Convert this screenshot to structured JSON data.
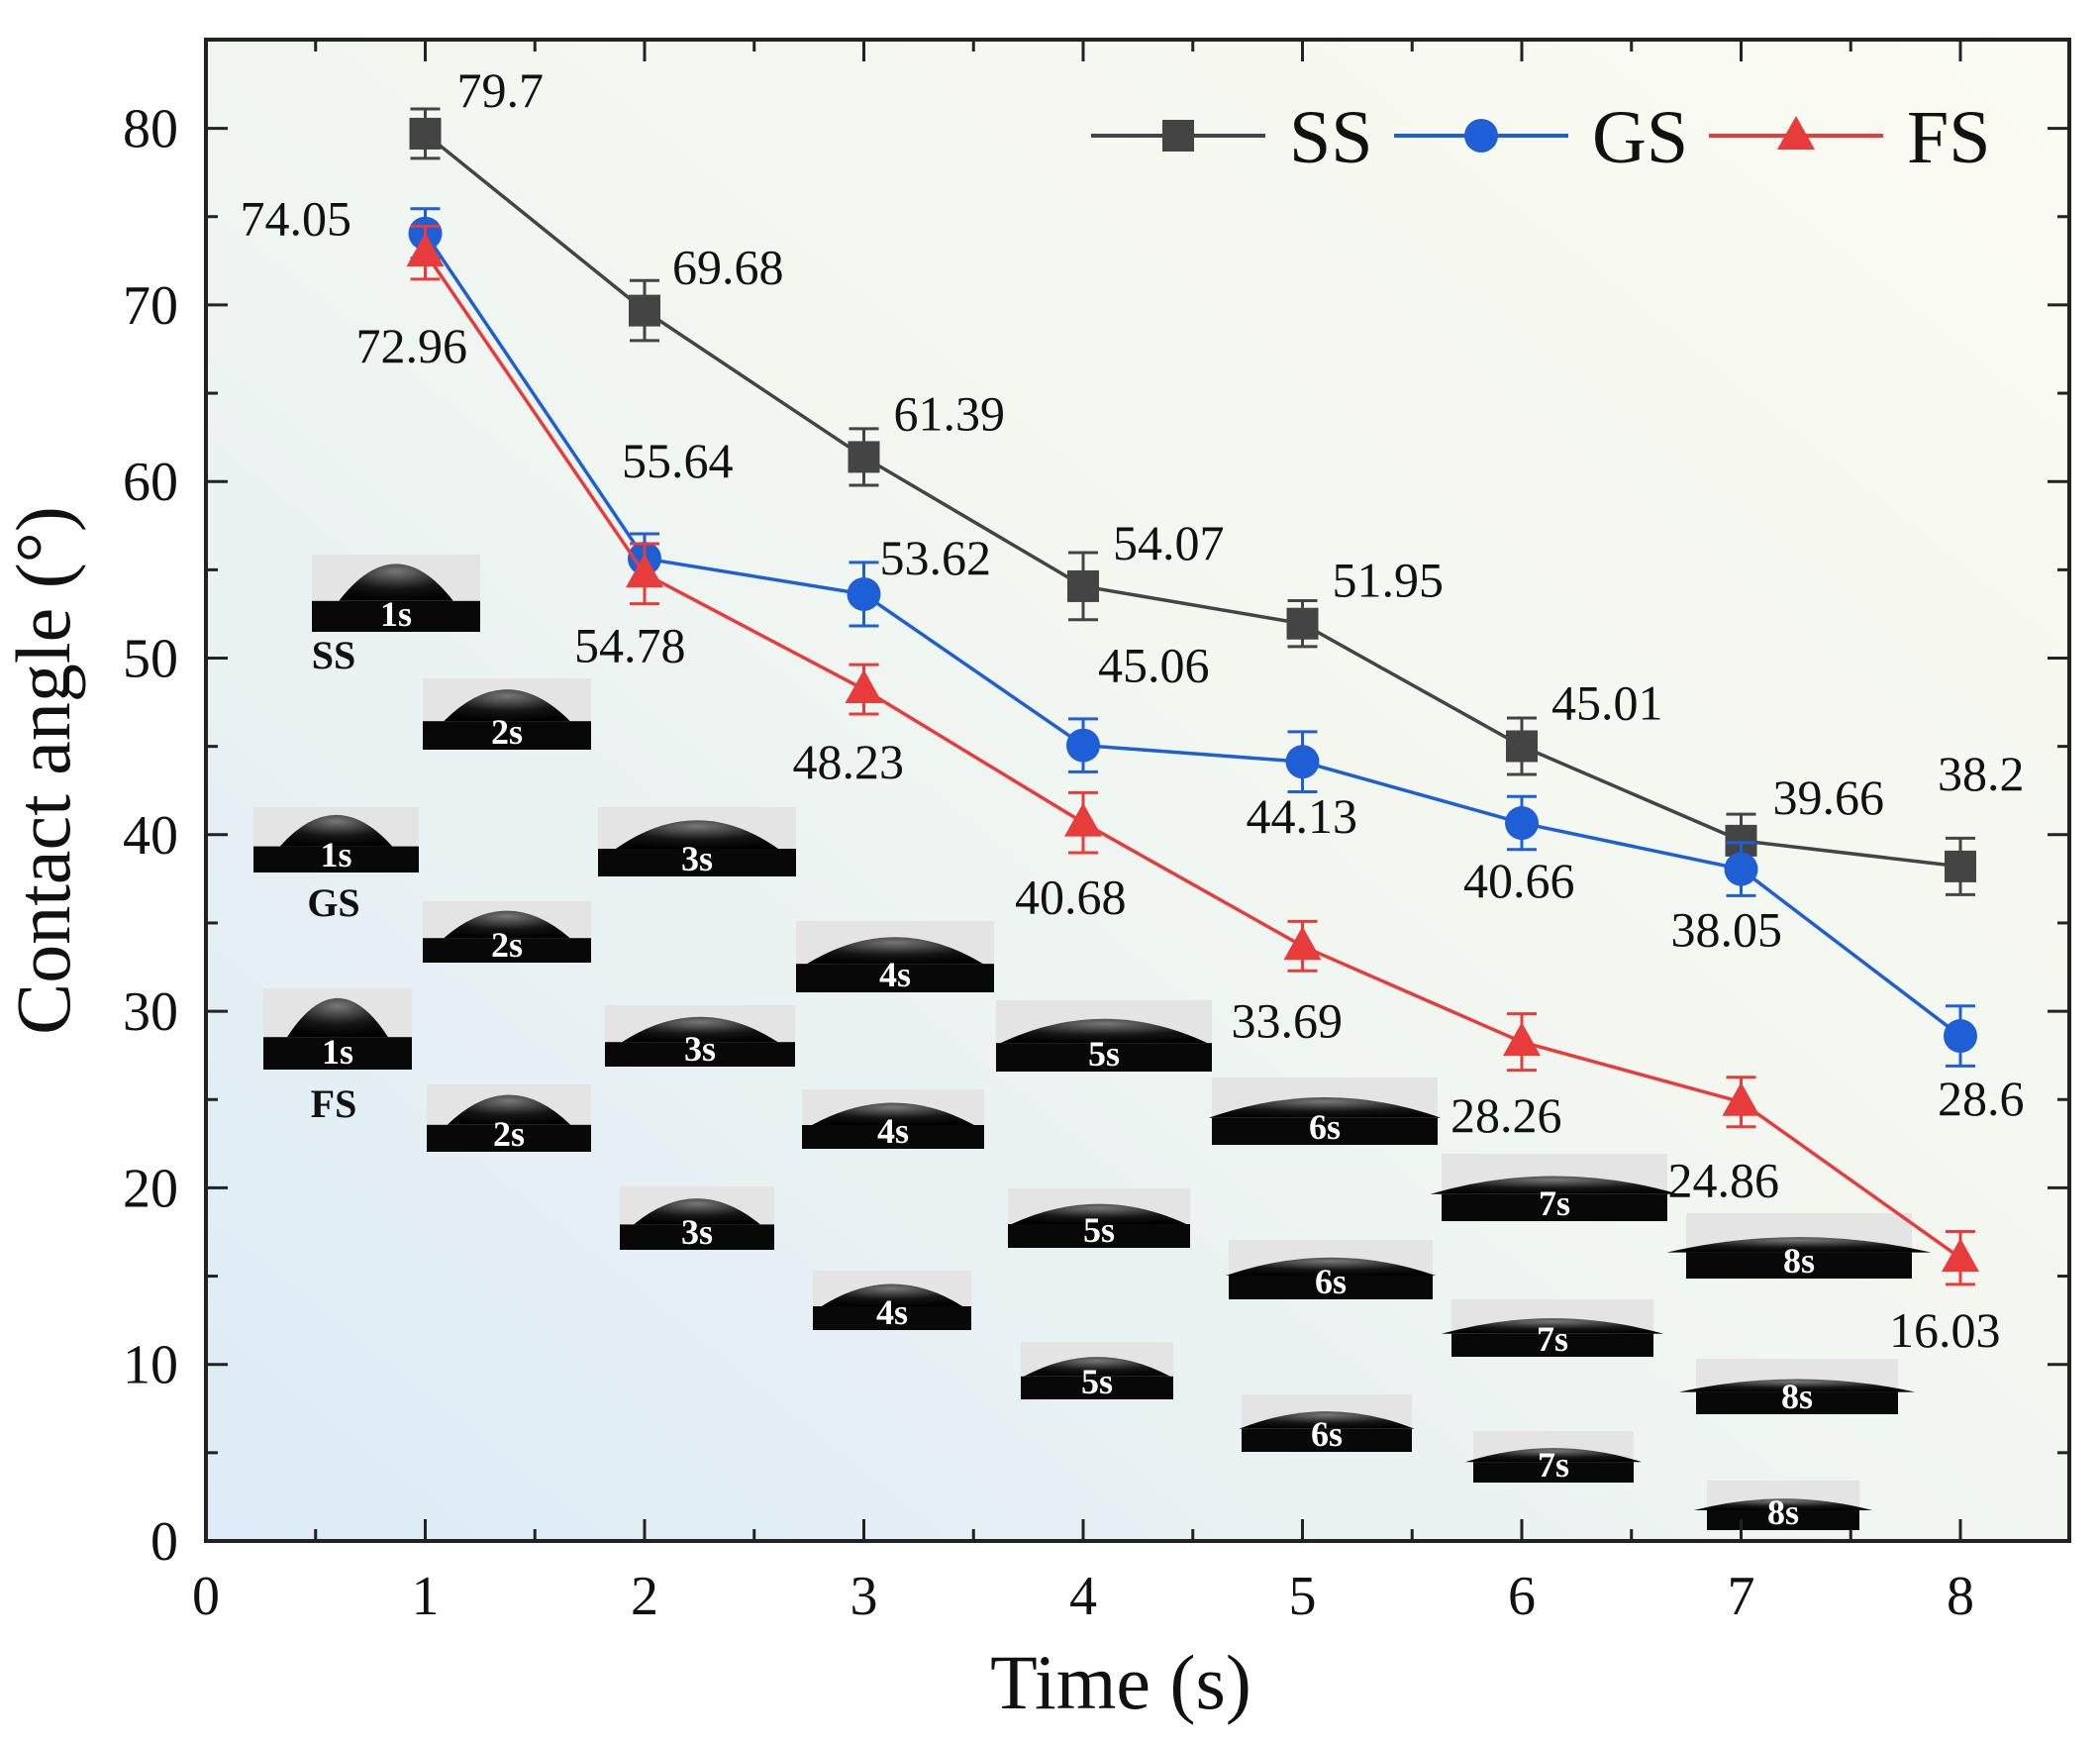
{
  "chart_data": {
    "type": "line",
    "title": "",
    "xlabel": "Time (s)",
    "ylabel": "Contact angle (°)",
    "xlim": [
      0,
      8.5
    ],
    "ylim": [
      0,
      85
    ],
    "xticks": [
      0,
      1,
      2,
      3,
      4,
      5,
      6,
      7,
      8
    ],
    "yticks": [
      0,
      10,
      20,
      30,
      40,
      50,
      60,
      70,
      80
    ],
    "legend_position": "top-right",
    "x": [
      1,
      2,
      3,
      4,
      5,
      6,
      7,
      8
    ],
    "series": [
      {
        "name": "SS",
        "color": "#444444",
        "marker": "square",
        "values": [
          79.7,
          69.68,
          61.39,
          54.07,
          51.95,
          45.01,
          39.66,
          38.2
        ],
        "errors": [
          1.4,
          1.7,
          1.6,
          1.9,
          1.3,
          1.6,
          1.5,
          1.6
        ],
        "labels": [
          "79.7",
          "69.68",
          "61.39",
          "54.07",
          "51.95",
          "45.01",
          "39.66",
          "38.2"
        ]
      },
      {
        "name": "GS",
        "color": "#1f5fd6",
        "marker": "circle",
        "values": [
          74.05,
          55.64,
          53.62,
          45.06,
          44.13,
          40.66,
          38.05,
          28.6
        ],
        "errors": [
          1.4,
          1.4,
          1.8,
          1.5,
          1.7,
          1.5,
          1.5,
          1.7
        ],
        "labels": [
          "74.05",
          "55.64",
          "53.62",
          "45.06",
          "44.13",
          "40.66",
          "38.05",
          "28.6"
        ]
      },
      {
        "name": "FS",
        "color": "#e83b3b",
        "marker": "triangle",
        "values": [
          72.96,
          54.78,
          48.23,
          40.68,
          33.69,
          28.26,
          24.86,
          16.03
        ],
        "errors": [
          1.5,
          1.7,
          1.4,
          1.7,
          1.4,
          1.6,
          1.4,
          1.5
        ],
        "labels": [
          "72.96",
          "54.78",
          "48.23",
          "40.68",
          "33.69",
          "28.26",
          "24.86",
          "16.03"
        ]
      }
    ],
    "inset_images": {
      "group_labels": [
        "SS",
        "GS",
        "FS"
      ],
      "SS": [
        "1s",
        "2s",
        "3s",
        "4s",
        "5s",
        "6s",
        "7s",
        "8s"
      ],
      "GS": [
        "1s",
        "2s",
        "3s",
        "4s",
        "5s",
        "6s",
        "7s",
        "8s"
      ],
      "FS": [
        "1s",
        "2s",
        "3s",
        "4s",
        "5s",
        "6s",
        "7s",
        "8s"
      ]
    }
  }
}
